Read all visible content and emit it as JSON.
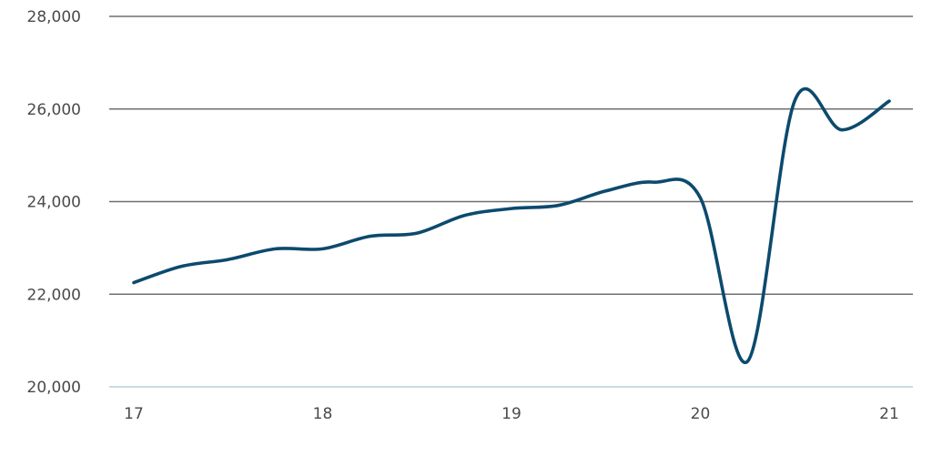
{
  "chart_data": {
    "type": "line",
    "title": "",
    "xlabel": "",
    "ylabel": "",
    "xlim": [
      17,
      21
    ],
    "ylim": [
      20000,
      28000
    ],
    "grid": true,
    "x_ticks": [
      {
        "value": 17,
        "label": "17"
      },
      {
        "value": 18,
        "label": "18"
      },
      {
        "value": 19,
        "label": "19"
      },
      {
        "value": 20,
        "label": "20"
      },
      {
        "value": 21,
        "label": "21"
      }
    ],
    "y_ticks": [
      {
        "value": 20000,
        "label": "20,000"
      },
      {
        "value": 22000,
        "label": "22,000"
      },
      {
        "value": 24000,
        "label": "24,000"
      },
      {
        "value": 26000,
        "label": "26,000"
      },
      {
        "value": 28000,
        "label": "28,000"
      }
    ],
    "series": [
      {
        "color": "#0c4a6e",
        "x": [
          17.0,
          17.25,
          17.5,
          17.75,
          18.0,
          18.25,
          18.5,
          18.75,
          19.0,
          19.25,
          19.5,
          19.75,
          20.0,
          20.25,
          20.5,
          20.75,
          21.0
        ],
        "y": [
          22250,
          22600,
          22750,
          22980,
          22980,
          23250,
          23320,
          23700,
          23850,
          23920,
          24230,
          24420,
          24080,
          20550,
          26180,
          25550,
          26170
        ]
      }
    ]
  }
}
